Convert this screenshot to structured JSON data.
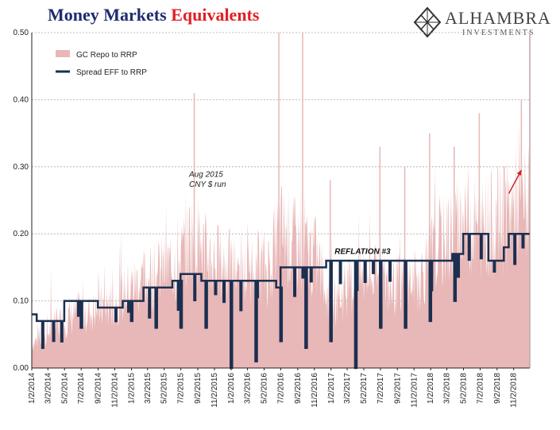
{
  "title": {
    "part1": "Money Markets ",
    "part2": "Equivalents",
    "color1": "#1f2b6e",
    "color2": "#e31e24"
  },
  "logo": {
    "name": "ALHAMBRA",
    "sub": "INVESTMENTS"
  },
  "chart_data": {
    "type": "line",
    "ylim": [
      0,
      0.5
    ],
    "yticks": [
      "0.00",
      "0.10",
      "0.20",
      "0.30",
      "0.40",
      "0.50"
    ],
    "x_range": [
      "2014-01-02",
      "2018-12-31"
    ],
    "xticks": [
      "1/2/2014",
      "3/2/2014",
      "5/2/2014",
      "7/2/2014",
      "9/2/2014",
      "11/2/2014",
      "1/2/2015",
      "3/2/2015",
      "5/2/2015",
      "7/2/2015",
      "9/2/2015",
      "11/2/2015",
      "1/2/2016",
      "3/2/2016",
      "5/2/2016",
      "7/2/2016",
      "9/2/2016",
      "11/2/2016",
      "1/2/2017",
      "3/2/2017",
      "5/2/2017",
      "7/2/2017",
      "9/2/2017",
      "11/2/2017",
      "1/2/2018",
      "3/2/2018",
      "5/2/2018",
      "7/2/2018",
      "9/2/2018",
      "11/2/2018"
    ],
    "grid": true,
    "legend_position": "top-left",
    "series": [
      {
        "name": "GC Repo to RRP",
        "style": "area",
        "color": "#e8b7b7",
        "x": [
          "2014-01-02",
          "2014-02-15",
          "2014-04-01",
          "2014-05-15",
          "2014-07-01",
          "2014-08-15",
          "2014-10-01",
          "2014-11-15",
          "2015-01-01",
          "2015-02-15",
          "2015-04-01",
          "2015-05-15",
          "2015-07-01",
          "2015-08-15",
          "2015-10-01",
          "2015-11-15",
          "2016-01-01",
          "2016-02-15",
          "2016-04-01",
          "2016-05-15",
          "2016-07-01",
          "2016-08-15",
          "2016-10-01",
          "2016-11-15",
          "2017-01-01",
          "2017-02-15",
          "2017-04-01",
          "2017-05-15",
          "2017-07-01",
          "2017-08-15",
          "2017-10-01",
          "2017-11-15",
          "2018-01-01",
          "2018-02-15",
          "2018-04-01",
          "2018-05-15",
          "2018-07-01",
          "2018-08-15",
          "2018-10-01",
          "2018-11-15",
          "2018-12-31"
        ],
        "y": [
          0.04,
          0.05,
          0.07,
          0.08,
          0.09,
          0.09,
          0.1,
          0.11,
          0.13,
          0.14,
          0.15,
          0.16,
          0.17,
          0.22,
          0.18,
          0.17,
          0.16,
          0.15,
          0.16,
          0.16,
          0.22,
          0.2,
          0.19,
          0.17,
          0.1,
          0.12,
          0.14,
          0.15,
          0.14,
          0.13,
          0.14,
          0.14,
          0.18,
          0.2,
          0.22,
          0.24,
          0.22,
          0.23,
          0.24,
          0.26,
          0.26
        ],
        "peaks": [
          {
            "x": "2015-08-20",
            "y": 0.41
          },
          {
            "x": "2016-06-25",
            "y": 0.5
          },
          {
            "x": "2016-09-20",
            "y": 0.5
          },
          {
            "x": "2016-12-30",
            "y": 0.28
          },
          {
            "x": "2017-06-30",
            "y": 0.33
          },
          {
            "x": "2017-09-29",
            "y": 0.3
          },
          {
            "x": "2017-12-29",
            "y": 0.35
          },
          {
            "x": "2018-03-29",
            "y": 0.33
          },
          {
            "x": "2018-06-29",
            "y": 0.38
          },
          {
            "x": "2018-09-28",
            "y": 0.3
          },
          {
            "x": "2018-11-30",
            "y": 0.4
          },
          {
            "x": "2018-12-31",
            "y": 0.5
          }
        ]
      },
      {
        "name": "Spread EFF to RRP",
        "style": "step",
        "color": "#1b2f50",
        "x": [
          "2014-01-02",
          "2014-01-20",
          "2014-03-01",
          "2014-05-01",
          "2014-09-01",
          "2014-10-15",
          "2014-12-01",
          "2015-02-15",
          "2015-06-01",
          "2015-07-01",
          "2015-09-15",
          "2015-11-15",
          "2015-12-17",
          "2016-02-15",
          "2016-04-15",
          "2016-06-15",
          "2016-07-01",
          "2016-11-01",
          "2016-12-15",
          "2017-03-16",
          "2017-06-15",
          "2017-09-01",
          "2017-12-14",
          "2018-03-22",
          "2018-05-01",
          "2018-06-14",
          "2018-08-01",
          "2018-09-27",
          "2018-10-15",
          "2018-12-31"
        ],
        "y": [
          0.08,
          0.07,
          0.07,
          0.1,
          0.09,
          0.09,
          0.1,
          0.12,
          0.13,
          0.14,
          0.13,
          0.13,
          0.13,
          0.13,
          0.13,
          0.12,
          0.15,
          0.15,
          0.16,
          0.16,
          0.16,
          0.16,
          0.16,
          0.17,
          0.2,
          0.2,
          0.16,
          0.18,
          0.2,
          0.2
        ],
        "dips": [
          {
            "x": "2014-06-30",
            "y": 0.06
          },
          {
            "x": "2014-12-31",
            "y": 0.07
          },
          {
            "x": "2015-03-31",
            "y": 0.06
          },
          {
            "x": "2015-06-30",
            "y": 0.06
          },
          {
            "x": "2015-09-30",
            "y": 0.06
          },
          {
            "x": "2015-12-31",
            "y": 0.0
          },
          {
            "x": "2016-03-31",
            "y": 0.01
          },
          {
            "x": "2016-06-30",
            "y": 0.04
          },
          {
            "x": "2016-09-30",
            "y": 0.03
          },
          {
            "x": "2016-12-30",
            "y": 0.04
          },
          {
            "x": "2017-03-31",
            "y": 0.0
          },
          {
            "x": "2017-06-30",
            "y": 0.06
          },
          {
            "x": "2017-09-29",
            "y": 0.06
          },
          {
            "x": "2017-12-29",
            "y": 0.07
          },
          {
            "x": "2018-03-29",
            "y": 0.1
          }
        ]
      }
    ],
    "annotations": [
      {
        "text": "Aug 2015",
        "x": "2015-08-01",
        "y": 0.285
      },
      {
        "text": "CNY $ run",
        "x": "2015-08-01",
        "y": 0.27
      },
      {
        "text": "REFLATION #3",
        "x": "2017-01-15",
        "y": 0.17,
        "bold": true
      }
    ],
    "arrow": {
      "from": {
        "x": "2018-10-15",
        "y": 0.26
      },
      "to": {
        "x": "2018-11-30",
        "y": 0.295
      },
      "color": "#cc2222"
    }
  }
}
